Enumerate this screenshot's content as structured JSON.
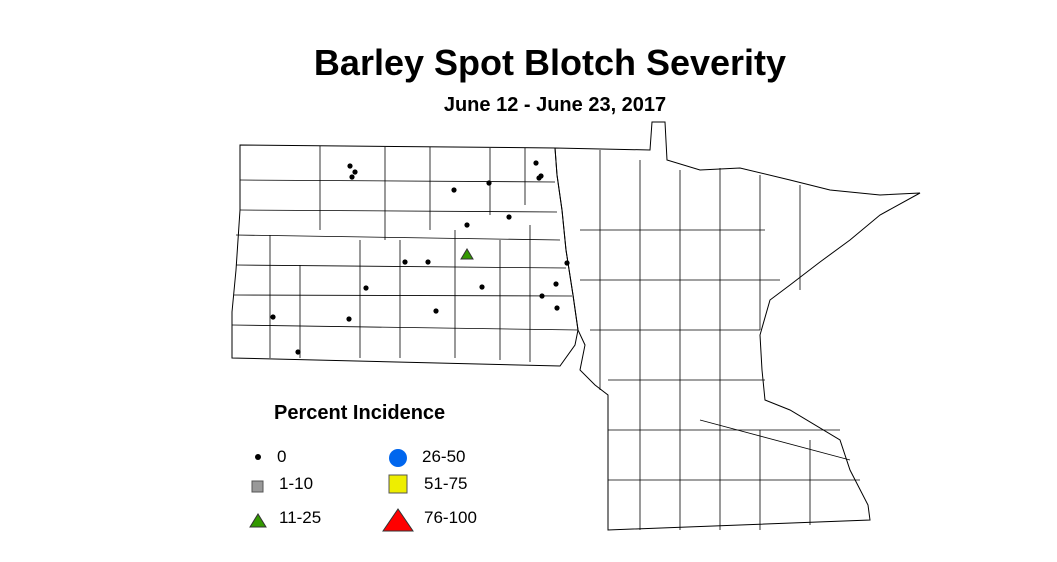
{
  "title": "Barley Spot Blotch Severity",
  "subtitle": "June 12 - June 23, 2017",
  "legend": {
    "title": "Percent Incidence",
    "items": [
      {
        "label": "0",
        "shape": "dot",
        "color": "#000000"
      },
      {
        "label": "1-10",
        "shape": "square",
        "color": "#999999"
      },
      {
        "label": "11-25",
        "shape": "triangle",
        "color": "#339900"
      },
      {
        "label": "26-50",
        "shape": "circle",
        "color": "#0066ee"
      },
      {
        "label": "51-75",
        "shape": "square",
        "color": "#eeee00"
      },
      {
        "label": "76-100",
        "shape": "triangle",
        "color": "#ff0000"
      }
    ]
  },
  "regions": [
    "North Dakota",
    "Minnesota"
  ],
  "observations_summary": {
    "category_0_count": 22,
    "category_11_25_count": 1
  }
}
